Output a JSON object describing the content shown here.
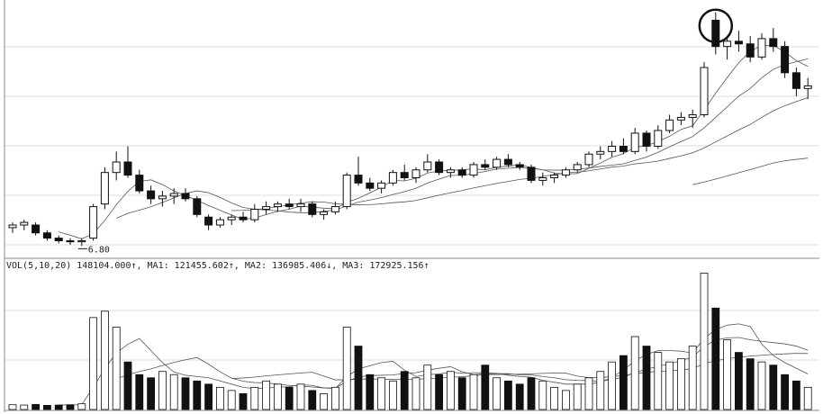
{
  "chart_data": {
    "type": "candlestick",
    "ylim": [
      6.6,
      11.4
    ],
    "volume_ylim": [
      0,
      440000
    ],
    "low_label": {
      "value": 6.8,
      "label": "6.80"
    },
    "low_index": 6,
    "volume_legend": "VOL(5,10,20) 148104.000↑, MA1: 121455.602↑, MA2: 136985.406↓, MA3: 172925.156↑",
    "ma_periods": [
      5,
      10,
      20,
      60
    ],
    "volume_ma_periods": [
      5,
      10,
      20
    ],
    "highlight_index": 61,
    "open": [
      7.15,
      7.2,
      7.2,
      7.05,
      6.95,
      6.9,
      6.88,
      6.95,
      7.6,
      8.2,
      8.4,
      8.15,
      7.85,
      7.7,
      7.75,
      7.8,
      7.7,
      7.35,
      7.2,
      7.3,
      7.35,
      7.3,
      7.5,
      7.55,
      7.6,
      7.55,
      7.6,
      7.4,
      7.45,
      7.55,
      8.15,
      8.0,
      7.9,
      8.0,
      8.2,
      8.1,
      8.25,
      8.4,
      8.2,
      8.25,
      8.15,
      8.35,
      8.3,
      8.45,
      8.35,
      8.3,
      8.05,
      8.1,
      8.15,
      8.25,
      8.35,
      8.55,
      8.6,
      8.7,
      8.6,
      8.95,
      8.7,
      9.0,
      9.2,
      9.25,
      9.3,
      11.1,
      10.6,
      10.7,
      10.65,
      10.4,
      10.75,
      10.6,
      10.1,
      9.8
    ],
    "high": [
      7.25,
      7.3,
      7.25,
      7.1,
      7.0,
      6.95,
      6.95,
      7.6,
      8.3,
      8.6,
      8.7,
      8.25,
      7.95,
      7.85,
      7.9,
      7.9,
      7.75,
      7.4,
      7.35,
      7.4,
      7.45,
      7.6,
      7.65,
      7.65,
      7.7,
      7.7,
      7.65,
      7.5,
      7.65,
      8.2,
      8.5,
      8.1,
      8.05,
      8.25,
      8.35,
      8.3,
      8.55,
      8.45,
      8.3,
      8.3,
      8.4,
      8.45,
      8.5,
      8.55,
      8.4,
      8.35,
      8.2,
      8.2,
      8.3,
      8.4,
      8.6,
      8.7,
      8.8,
      8.85,
      9.05,
      9.0,
      9.1,
      9.3,
      9.35,
      9.4,
      10.3,
      11.25,
      10.8,
      10.9,
      10.8,
      10.85,
      10.95,
      10.7,
      10.2,
      10.0
    ],
    "low": [
      7.05,
      7.1,
      7.0,
      6.9,
      6.85,
      6.82,
      6.8,
      6.9,
      7.5,
      8.05,
      8.1,
      7.8,
      7.6,
      7.55,
      7.6,
      7.65,
      7.35,
      7.1,
      7.15,
      7.2,
      7.25,
      7.25,
      7.4,
      7.45,
      7.5,
      7.45,
      7.35,
      7.3,
      7.4,
      7.5,
      7.95,
      7.85,
      7.8,
      7.95,
      8.05,
      8.0,
      8.2,
      8.15,
      8.1,
      8.1,
      8.1,
      8.25,
      8.25,
      8.3,
      8.25,
      8.0,
      7.95,
      8.0,
      8.1,
      8.2,
      8.3,
      8.45,
      8.5,
      8.55,
      8.55,
      8.6,
      8.65,
      8.95,
      9.1,
      9.05,
      9.25,
      10.45,
      10.35,
      10.5,
      10.3,
      10.35,
      10.5,
      10.0,
      9.65,
      9.6
    ],
    "close": [
      7.2,
      7.25,
      7.05,
      6.95,
      6.9,
      6.88,
      6.9,
      7.55,
      8.2,
      8.4,
      8.15,
      7.85,
      7.7,
      7.75,
      7.8,
      7.7,
      7.4,
      7.2,
      7.3,
      7.35,
      7.3,
      7.5,
      7.55,
      7.6,
      7.55,
      7.6,
      7.4,
      7.45,
      7.55,
      8.15,
      8.0,
      7.9,
      8.0,
      8.2,
      8.1,
      8.25,
      8.4,
      8.2,
      8.25,
      8.15,
      8.35,
      8.3,
      8.45,
      8.35,
      8.3,
      8.05,
      8.1,
      8.15,
      8.25,
      8.35,
      8.55,
      8.6,
      8.7,
      8.6,
      8.95,
      8.7,
      9.0,
      9.2,
      9.25,
      9.3,
      10.2,
      10.6,
      10.7,
      10.65,
      10.4,
      10.75,
      10.6,
      10.1,
      9.8,
      9.85
    ],
    "volume": [
      15000,
      14000,
      16000,
      13000,
      14000,
      15000,
      18000,
      290000,
      310000,
      260000,
      150000,
      110000,
      100000,
      120000,
      110000,
      100000,
      90000,
      80000,
      70000,
      60000,
      50000,
      70000,
      90000,
      80000,
      70000,
      80000,
      60000,
      50000,
      70000,
      260000,
      200000,
      110000,
      100000,
      90000,
      120000,
      100000,
      140000,
      110000,
      120000,
      100000,
      110000,
      140000,
      100000,
      90000,
      80000,
      100000,
      90000,
      70000,
      60000,
      80000,
      100000,
      120000,
      150000,
      170000,
      230000,
      200000,
      180000,
      150000,
      160000,
      200000,
      430000,
      320000,
      220000,
      180000,
      160000,
      150000,
      140000,
      110000,
      90000,
      70000
    ]
  }
}
